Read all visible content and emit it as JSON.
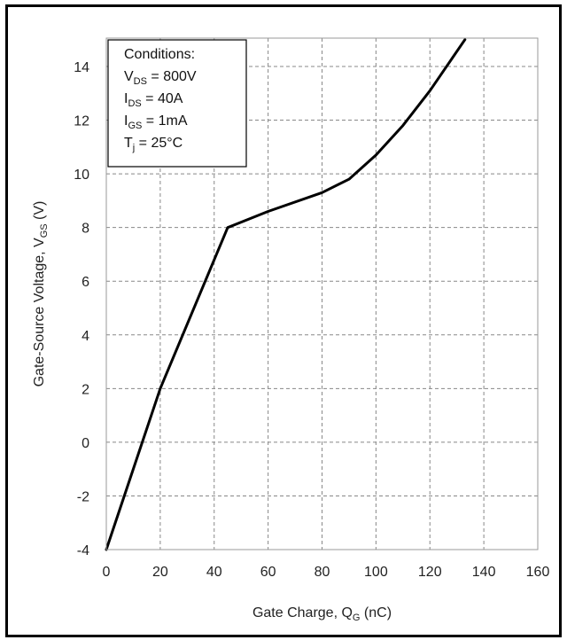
{
  "chart_data": {
    "type": "line",
    "xlabel": {
      "main": "Gate Charge, Q",
      "sub": "G",
      "unit": " (nC)"
    },
    "ylabel": {
      "main": "Gate-Source Voltage, V",
      "sub": "GS",
      "unit": " (V)"
    },
    "xlim": [
      0,
      160
    ],
    "ylim": [
      -4,
      15
    ],
    "x_ticks": [
      0,
      20,
      40,
      60,
      80,
      100,
      120,
      140,
      160
    ],
    "x_tick_labels": [
      "0",
      "20",
      "40",
      "60",
      "80",
      "100",
      "120",
      "140",
      "160"
    ],
    "y_ticks": [
      -4,
      -2,
      0,
      2,
      4,
      6,
      8,
      10,
      12,
      14
    ],
    "y_tick_labels": [
      "-4",
      "-2",
      "0",
      "2",
      "4",
      "6",
      "8",
      "10",
      "12",
      "14"
    ],
    "grid": true,
    "series": [
      {
        "x": [
          0,
          20,
          45,
          60,
          80,
          90,
          100,
          110,
          120,
          133
        ],
        "y": [
          -4,
          2,
          8,
          8.6,
          9.3,
          9.8,
          10.7,
          11.8,
          13.1,
          15
        ]
      }
    ],
    "annotation": {
      "title": "Conditions:",
      "lines": [
        {
          "main": "V",
          "sub": "DS",
          "rest": " = 800V"
        },
        {
          "main": "I",
          "sub": "DS",
          "rest": " = 40A"
        },
        {
          "main": "I",
          "sub": "GS",
          "rest": " = 1mA"
        },
        {
          "main": "T",
          "sub": "j",
          "rest": " = 25°C"
        }
      ]
    }
  }
}
